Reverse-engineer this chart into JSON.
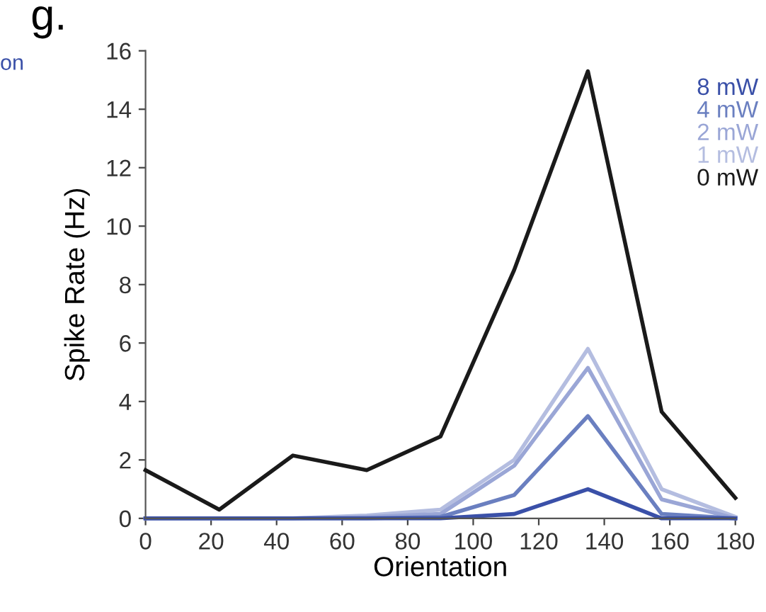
{
  "chart_data": {
    "type": "line",
    "title": "g.",
    "annotations": [
      "on"
    ],
    "xlabel": "Orientation",
    "ylabel": "Spike Rate (Hz)",
    "x": [
      0,
      22.5,
      45,
      67.5,
      90,
      112.5,
      135,
      157.5,
      180
    ],
    "series": [
      {
        "name": "8 mW",
        "color": "#3a50a8",
        "values": [
          0,
          0,
          0,
          0,
          0,
          0.15,
          1.0,
          0,
          0
        ]
      },
      {
        "name": "4 mW",
        "color": "#6a7fc0",
        "values": [
          0,
          0,
          0,
          0,
          0.05,
          0.8,
          3.5,
          0.15,
          0
        ]
      },
      {
        "name": "2 mW",
        "color": "#9aa6d6",
        "values": [
          0,
          0,
          0,
          0.05,
          0.15,
          1.8,
          5.15,
          0.65,
          0
        ]
      },
      {
        "name": "1 mW",
        "color": "#b4bde0",
        "values": [
          0,
          0,
          0,
          0.1,
          0.3,
          2.0,
          5.8,
          1.0,
          0.05
        ]
      },
      {
        "name": "0 mW",
        "color": "#1a1a1a",
        "values": [
          1.65,
          0.3,
          2.15,
          1.65,
          2.8,
          8.5,
          15.3,
          3.65,
          0.7
        ]
      }
    ],
    "xlim": [
      0,
      180
    ],
    "xticks": [
      0,
      20,
      40,
      60,
      80,
      100,
      120,
      140,
      160,
      180
    ],
    "ylim": [
      0,
      16
    ],
    "yticks": [
      0,
      2,
      4,
      6,
      8,
      10,
      12,
      14,
      16
    ],
    "legend": "right",
    "grid": false,
    "marker": "none",
    "line_style": "solid"
  }
}
